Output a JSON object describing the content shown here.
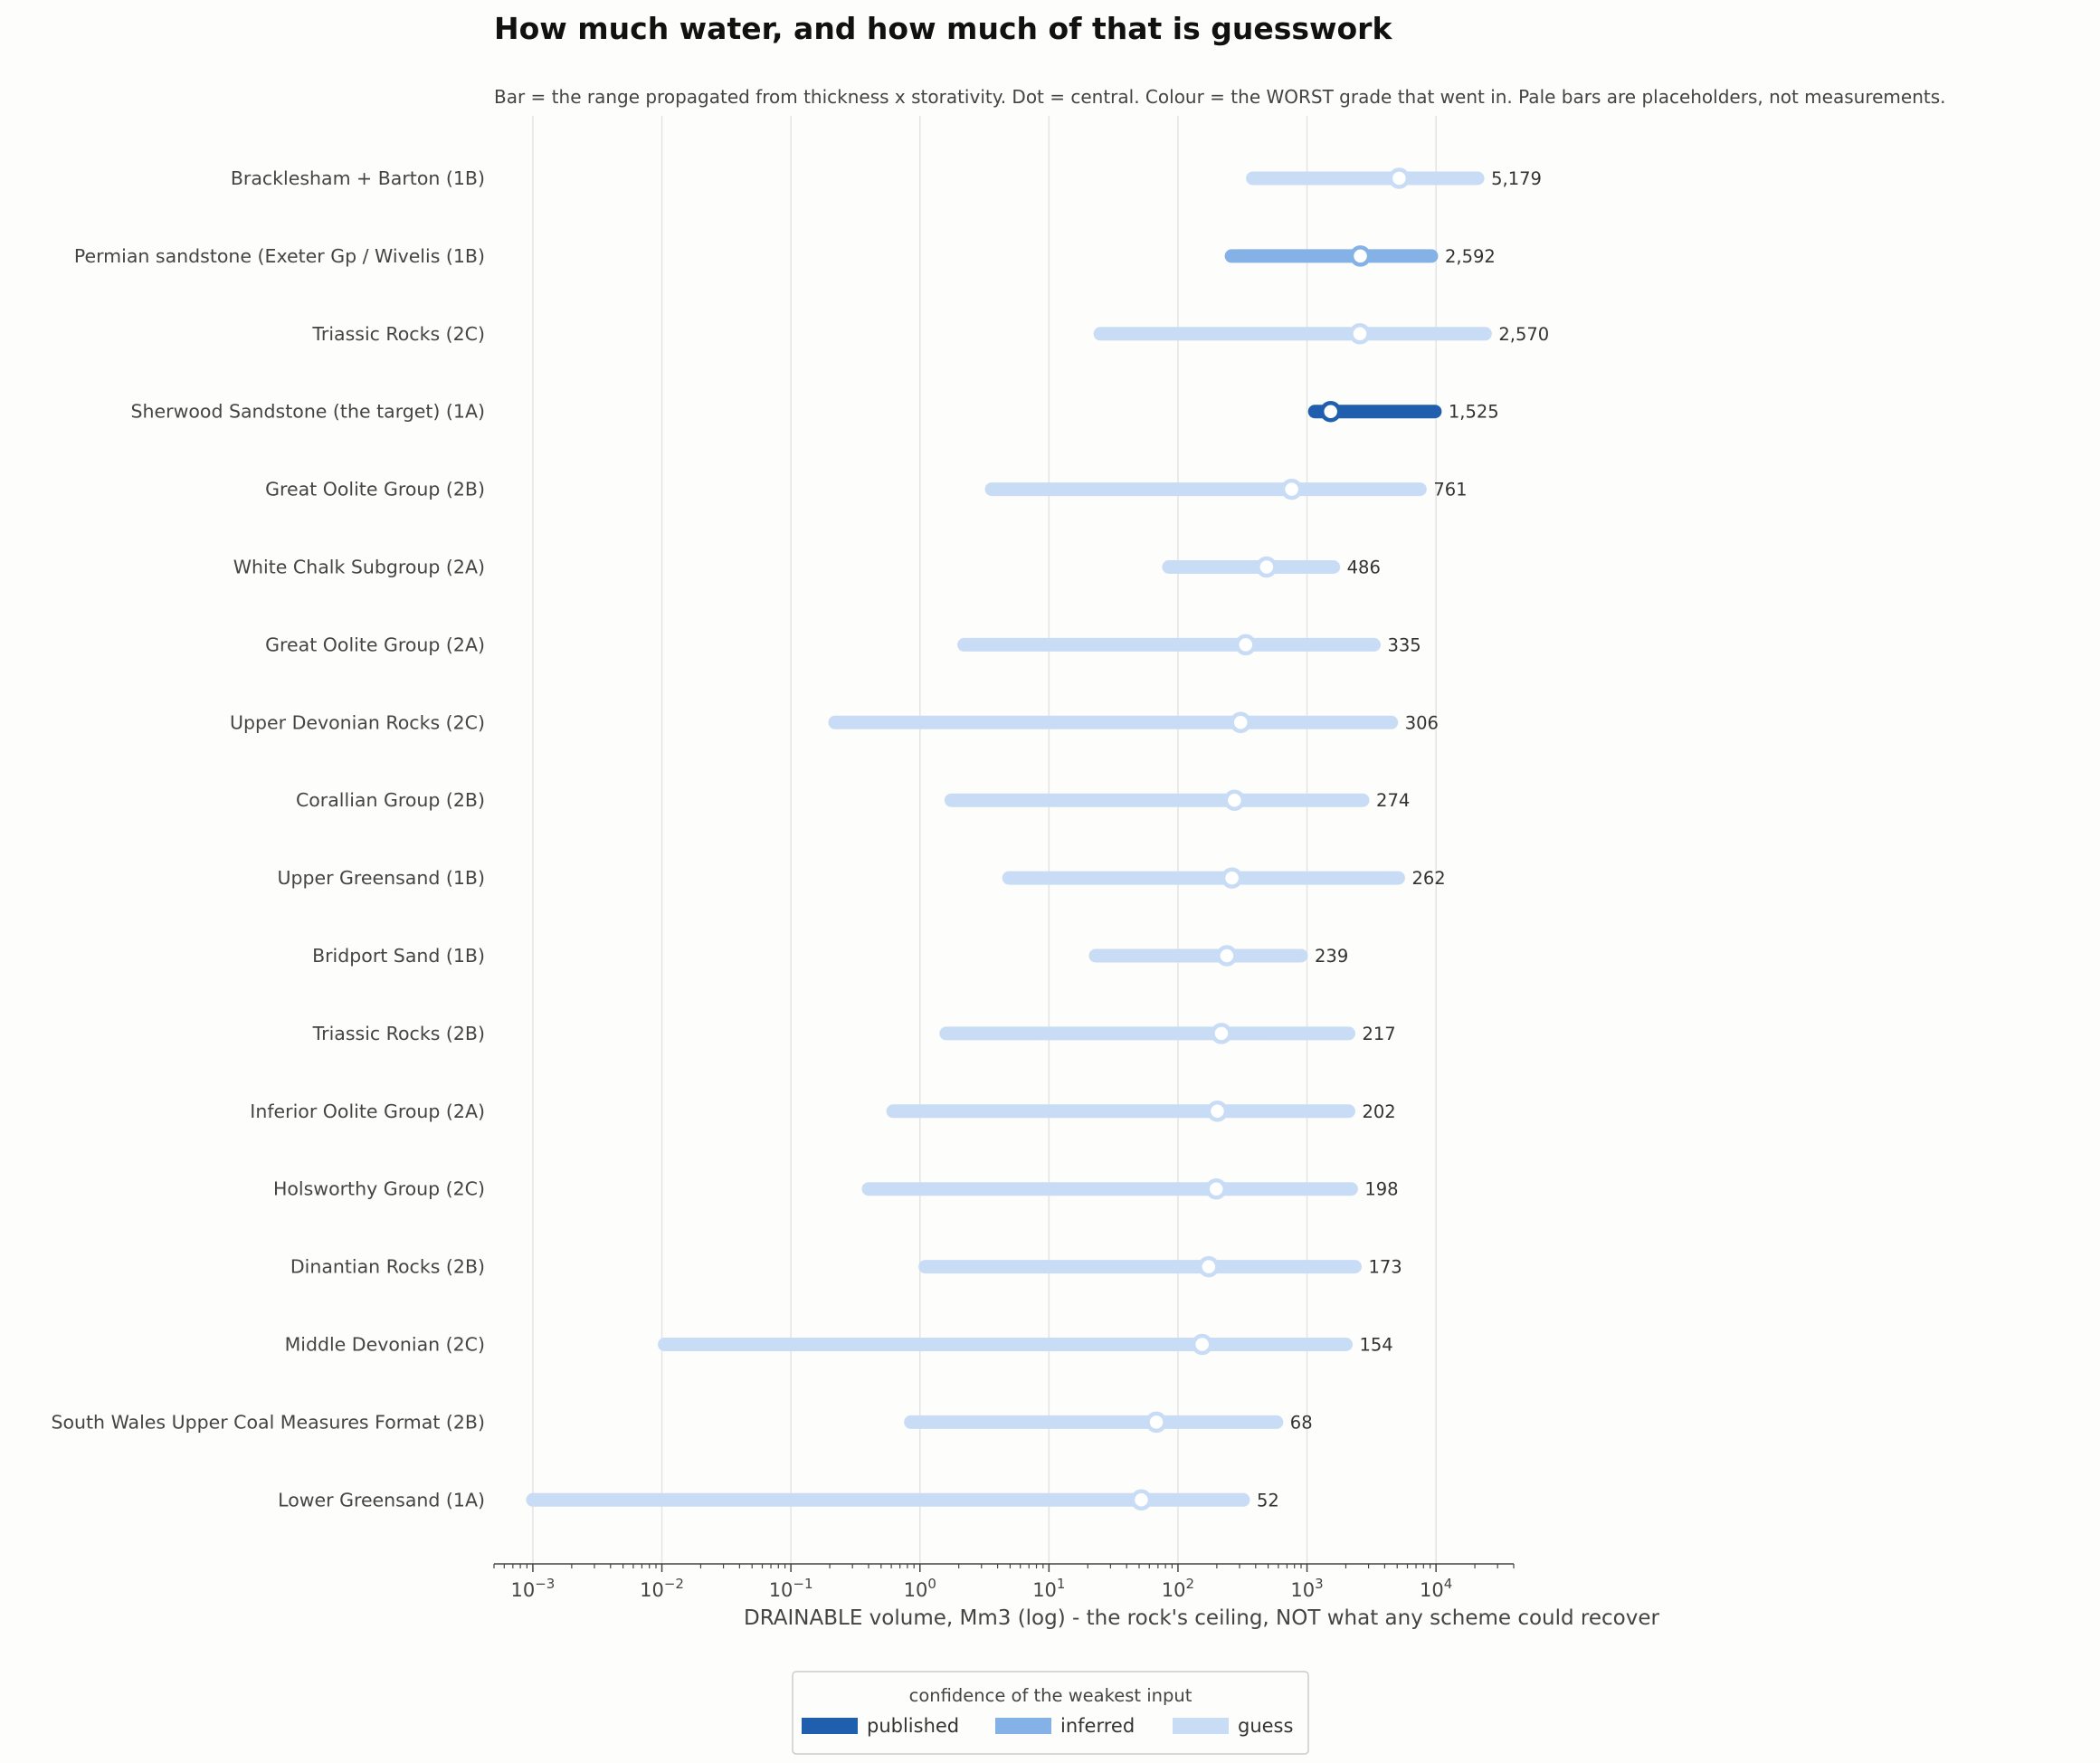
{
  "chart_data": {
    "type": "range",
    "title": "How much water, and how much of that is guesswork",
    "subtitle": "Bar = the range propagated from thickness x storativity. Dot = central. Colour = the WORST grade that went in. Pale bars are placeholders, not measurements.",
    "xlabel": "DRAINABLE volume, Mm3 (log) - the rock's ceiling, NOT what any scheme could recover",
    "xscale": "log",
    "xlim": [
      0.0005,
      40000
    ],
    "x_ticks": [
      0.001,
      0.01,
      0.1,
      1,
      10,
      100,
      1000,
      10000
    ],
    "x_tick_labels": [
      {
        "base": "10",
        "exp": "−3"
      },
      {
        "base": "10",
        "exp": "−2"
      },
      {
        "base": "10",
        "exp": "−1"
      },
      {
        "base": "10",
        "exp": "0"
      },
      {
        "base": "10",
        "exp": "1"
      },
      {
        "base": "10",
        "exp": "2"
      },
      {
        "base": "10",
        "exp": "3"
      },
      {
        "base": "10",
        "exp": "4"
      }
    ],
    "grid": "vertical",
    "colors": {
      "published": "#1f5fad",
      "inferred": "#85b2e6",
      "guess": "#c9dcf5"
    },
    "legend": {
      "title": "confidence of the weakest input",
      "placement": "bottom-center",
      "items": [
        {
          "key": "published",
          "label": "published"
        },
        {
          "key": "inferred",
          "label": "inferred"
        },
        {
          "key": "guess",
          "label": "guess"
        }
      ]
    },
    "rows": [
      {
        "label": "Bracklesham + Barton  (1B)",
        "low": 380,
        "high": 21000,
        "central": 5179,
        "value_label": "5,179",
        "grade": "guess"
      },
      {
        "label": "Permian sandstone (Exeter Gp / Wivelis  (1B)",
        "low": 260,
        "high": 9200,
        "central": 2592,
        "value_label": "2,592",
        "grade": "inferred"
      },
      {
        "label": "Triassic Rocks  (2C)",
        "low": 25,
        "high": 24000,
        "central": 2570,
        "value_label": "2,570",
        "grade": "guess"
      },
      {
        "label": "Sherwood Sandstone (the target)  (1A)",
        "low": 1150,
        "high": 9800,
        "central": 1525,
        "value_label": "1,525",
        "grade": "published"
      },
      {
        "label": "Great Oolite Group  (2B)",
        "low": 3.6,
        "high": 7500,
        "central": 761,
        "value_label": "761",
        "grade": "guess"
      },
      {
        "label": "White Chalk Subgroup  (2A)",
        "low": 85,
        "high": 1600,
        "central": 486,
        "value_label": "486",
        "grade": "guess"
      },
      {
        "label": "Great Oolite Group  (2A)",
        "low": 2.2,
        "high": 3300,
        "central": 335,
        "value_label": "335",
        "grade": "guess"
      },
      {
        "label": "Upper Devonian Rocks  (2C)",
        "low": 0.22,
        "high": 4500,
        "central": 306,
        "value_label": "306",
        "grade": "guess"
      },
      {
        "label": "Corallian Group  (2B)",
        "low": 1.75,
        "high": 2700,
        "central": 274,
        "value_label": "274",
        "grade": "guess"
      },
      {
        "label": "Upper Greensand  (1B)",
        "low": 4.9,
        "high": 5100,
        "central": 262,
        "value_label": "262",
        "grade": "guess"
      },
      {
        "label": "Bridport Sand  (1B)",
        "low": 23,
        "high": 900,
        "central": 239,
        "value_label": "239",
        "grade": "guess"
      },
      {
        "label": "Triassic Rocks  (2B)",
        "low": 1.6,
        "high": 2100,
        "central": 217,
        "value_label": "217",
        "grade": "guess"
      },
      {
        "label": "Inferior Oolite Group  (2A)",
        "low": 0.62,
        "high": 2100,
        "central": 202,
        "value_label": "202",
        "grade": "guess"
      },
      {
        "label": "Holsworthy Group  (2C)",
        "low": 0.4,
        "high": 2200,
        "central": 198,
        "value_label": "198",
        "grade": "guess"
      },
      {
        "label": "Dinantian Rocks  (2B)",
        "low": 1.1,
        "high": 2350,
        "central": 173,
        "value_label": "173",
        "grade": "guess"
      },
      {
        "label": "Middle Devonian  (2C)",
        "low": 0.0105,
        "high": 2000,
        "central": 154,
        "value_label": "154",
        "grade": "guess"
      },
      {
        "label": "South Wales Upper Coal Measures Format  (2B)",
        "low": 0.85,
        "high": 580,
        "central": 68,
        "value_label": "68",
        "grade": "guess"
      },
      {
        "label": "Lower Greensand  (1A)",
        "low": 0.001,
        "high": 320,
        "central": 52,
        "value_label": "52",
        "grade": "guess"
      }
    ]
  }
}
